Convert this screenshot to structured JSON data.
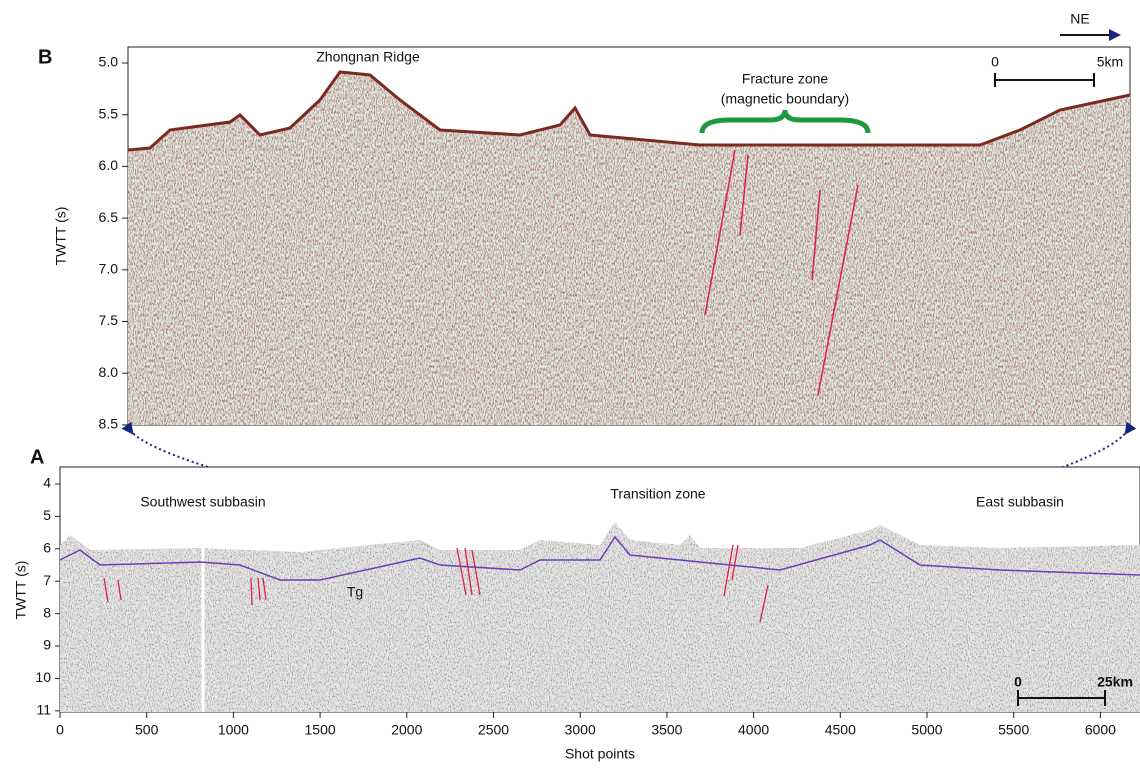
{
  "panel_b": {
    "label": "B",
    "north": "NE",
    "y_axis_label": "TWTT (s)",
    "yticks": [
      "5.0",
      "5.5",
      "6.0",
      "6.5",
      "7.0",
      "7.5",
      "8.0",
      "8.5"
    ],
    "annotations": {
      "ridge": "Zhongnan Ridge",
      "fracture_zone": [
        "Fracture zone",
        "(magnetic boundary)"
      ]
    },
    "scale_bar": {
      "start": "0",
      "end": "5km"
    }
  },
  "panel_a": {
    "label": "A",
    "y_axis_label": "TWTT (s)",
    "x_axis_label": "Shot points",
    "yticks": [
      "4",
      "5",
      "6",
      "7",
      "8",
      "9",
      "10",
      "11"
    ],
    "xticks": [
      "0",
      "500",
      "1000",
      "1500",
      "2000",
      "2500",
      "3000",
      "3500",
      "4000",
      "4500",
      "5000",
      "5500",
      "6000"
    ],
    "annotations": {
      "southwest": "Southwest subbasin",
      "transition": "Transition zone",
      "east": "East subbasin",
      "horizon": "Tg"
    },
    "scale_bar": {
      "start": "0",
      "end": "25km"
    }
  }
}
